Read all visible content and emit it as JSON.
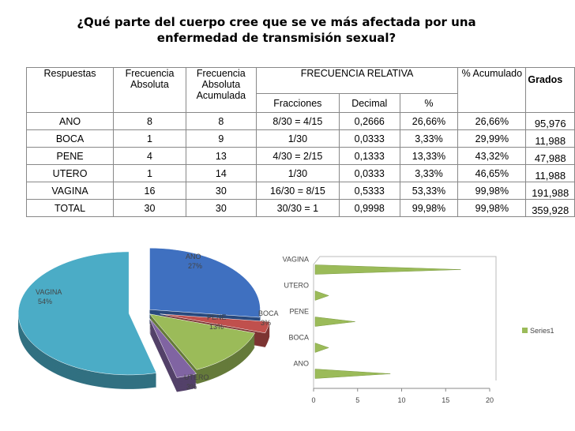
{
  "title": [
    "¿Qué parte del cuerpo cree que se ve más afectada por una",
    "enfermedad de transmisión  sexual?"
  ],
  "table": {
    "header": [
      [
        "Respuestas",
        "Frecuencia Absoluta",
        "Frecuencia Absoluta Acumulada",
        "FRECUENCIA RELATIVA",
        "% Acumulado",
        "Grados"
      ],
      [
        "Fracciones",
        "Decimal",
        "%"
      ]
    ],
    "rows": [
      [
        "ANO",
        "8",
        "8",
        "8/30  =  4/15",
        "0,2666",
        "26,66%",
        "26,66%",
        "95,976"
      ],
      [
        "BOCA",
        "1",
        "9",
        "1/30",
        "0,0333",
        "3,33%",
        "29,99%",
        "11,988"
      ],
      [
        "PENE",
        "4",
        "13",
        "4/30  =  2/15",
        "0,1333",
        "13,33%",
        "43,32%",
        "47,988"
      ],
      [
        "UTERO",
        "1",
        "14",
        "1/30",
        "0,0333",
        "3,33%",
        "46,65%",
        "11,988"
      ],
      [
        "VAGINA",
        "16",
        "30",
        "16/30  =  8/15",
        "0,5333",
        "53,33%",
        "99,98%",
        "191,988"
      ],
      [
        "TOTAL",
        "30",
        "30",
        "30/30  =   1",
        "0,9998",
        "99,98%",
        "99,98%",
        "359,928"
      ]
    ]
  },
  "chart_data": [
    {
      "type": "pie",
      "categories": [
        "ANO",
        "BOCA",
        "PENE",
        "UTERO",
        "VAGINA"
      ],
      "values": [
        27,
        3,
        13,
        3,
        54
      ],
      "value_labels": [
        "27%",
        "3%",
        "13%",
        "3%",
        "54%"
      ],
      "colors": [
        "#3f70c0",
        "#c0504d",
        "#9bbb59",
        "#8064a2",
        "#4bacc6"
      ]
    },
    {
      "type": "bar",
      "orientation": "horizontal",
      "categories": [
        "ANO",
        "BOCA",
        "PENE",
        "UTERO",
        "VAGINA"
      ],
      "series": [
        {
          "name": "Series1",
          "color": "#9bbb59",
          "values": [
            8,
            1,
            4,
            1,
            16
          ]
        }
      ],
      "xlim": [
        0,
        20
      ],
      "xticks": [
        0,
        5,
        10,
        15,
        20
      ]
    }
  ]
}
